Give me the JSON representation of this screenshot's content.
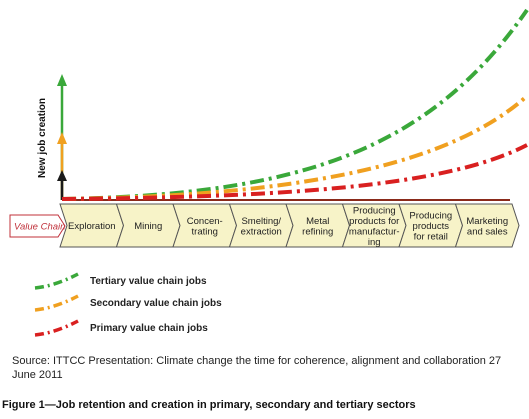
{
  "figure": {
    "y_axis_label": "New job creation",
    "value_chain_label": "Value Chain",
    "stages": [
      [
        "Exploration"
      ],
      [
        "Mining"
      ],
      [
        "Concen-",
        "trating"
      ],
      [
        "Smelting/",
        "extraction"
      ],
      [
        "Metal",
        "refining"
      ],
      [
        "Producing",
        "products for",
        "manufactur-",
        "ing"
      ],
      [
        "Producing",
        "products",
        "for retail"
      ],
      [
        "Marketing",
        "and sales"
      ]
    ],
    "legend": [
      {
        "label": "Tertiary value chain jobs",
        "color": "#3aa83a"
      },
      {
        "label": "Secondary value chain jobs",
        "color": "#f0a020"
      },
      {
        "label": "Primary value chain jobs",
        "color": "#d92020"
      }
    ],
    "colors": {
      "tertiary": "#3aa83a",
      "secondary": "#f0a020",
      "primary": "#d92020",
      "baseline": "#8a2a1a",
      "chevron_fill": "#f7f3c8",
      "chevron_stroke": "#555555"
    }
  },
  "source": "Source: ITTCC Presentation: Climate change the time for coherence, alignment and collaboration 27 June 2011",
  "caption": "Figure 1—Job retention and creation in primary, secondary and tertiary sectors"
}
